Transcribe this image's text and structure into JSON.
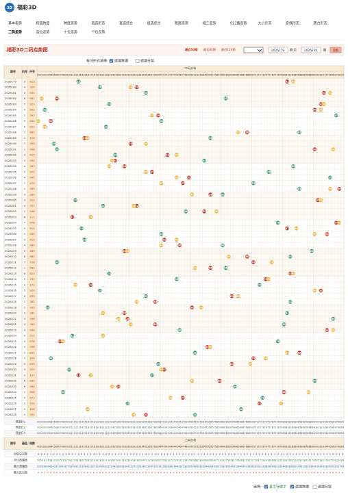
{
  "header": {
    "logo": "福彩3D",
    "nav": [
      "基本走势",
      "和值跨度",
      "跨度走势",
      "直选形态",
      "直选综合",
      "组选综合",
      "和尾走势",
      "组三走势",
      "012路走势",
      "大小形态",
      "奇偶形态",
      "质合形态"
    ],
    "nav2": [
      "二码走势",
      "百位走势",
      "十位走势",
      "个位走势"
    ]
  },
  "title_bar": {
    "title": "福彩3D二码走势图",
    "ranges": [
      "最近50期",
      "最近80期",
      "最近120期"
    ],
    "start": "2026179",
    "mid": "期 至",
    "end": "2026239",
    "suffix": "期",
    "button": "查看"
  },
  "options": {
    "label": "标注形式选择:",
    "items": [
      {
        "text": "遗漏数据",
        "checked": true
      },
      {
        "text": "遗漏分层",
        "checked": false
      }
    ]
  },
  "table": {
    "headers": [
      "期号",
      "机号",
      "开号"
    ],
    "group": "二码分布",
    "codes": [
      "00",
      "01",
      "02",
      "03",
      "04",
      "05",
      "06",
      "07",
      "08",
      "09",
      "10",
      "11",
      "12",
      "13",
      "14",
      "15",
      "16",
      "17",
      "18",
      "19",
      "20",
      "21",
      "22",
      "23",
      "24",
      "25",
      "26",
      "27",
      "28",
      "29",
      "30",
      "31",
      "32",
      "33",
      "34",
      "35",
      "36",
      "37",
      "38",
      "39",
      "40",
      "41",
      "42",
      "43",
      "44",
      "45",
      "46",
      "47",
      "48",
      "49",
      "50",
      "51",
      "52",
      "53",
      "54",
      "55",
      "56",
      "57",
      "58",
      "59",
      "60",
      "61",
      "62",
      "63",
      "64",
      "65",
      "66",
      "67",
      "68",
      "69",
      "70",
      "71",
      "72",
      "73",
      "74",
      "75",
      "76",
      "77",
      "78",
      "79",
      "80",
      "81",
      "82",
      "83",
      "84",
      "85",
      "86",
      "87",
      "88",
      "89",
      "90",
      "91",
      "92",
      "93",
      "94",
      "95",
      "96",
      "97",
      "98",
      "99"
    ],
    "hit_colors": [
      "#c0392b",
      "#3a9a7a",
      "#f0b030"
    ],
    "rows": [
      {
        "issue": "2026179",
        "test": "3",
        "number": "813",
        "hits": [
          81,
          13,
          83
        ]
      },
      {
        "issue": "2026180",
        "test": "4",
        "number": "320",
        "hits": [
          32,
          20,
          30
        ]
      },
      {
        "issue": "2026181",
        "test": "3",
        "number": "935",
        "hits": [
          93,
          35,
          95
        ]
      },
      {
        "issue": "2026182",
        "test": "6",
        "number": "061",
        "hits": [
          6,
          61,
          1
        ]
      },
      {
        "issue": "2026183",
        "test": "7",
        "number": "923",
        "hits": [
          92,
          23,
          93
        ]
      },
      {
        "issue": "2026184",
        "test": "3",
        "number": "902",
        "hits": [
          90,
          2,
          92
        ]
      },
      {
        "issue": "2026185",
        "test": "1",
        "number": "397",
        "hits": [
          39,
          97,
          37
        ]
      },
      {
        "issue": "2026186",
        "test": "5",
        "number": "040",
        "hits": [
          4,
          40,
          0
        ]
      },
      {
        "issue": "2026187",
        "test": "4",
        "number": "022",
        "hits": [
          2,
          22,
          2
        ]
      },
      {
        "issue": "2026188",
        "test": "2",
        "number": "685",
        "hits": [
          68,
          85,
          65
        ]
      },
      {
        "issue": "2026189",
        "test": "1",
        "number": "156",
        "hits": [
          15,
          56,
          16
        ]
      },
      {
        "issue": "2026190",
        "test": "7",
        "number": "305",
        "hits": [
          30,
          5,
          35
        ]
      },
      {
        "issue": "2026191",
        "test": "1",
        "number": "906",
        "hits": [
          90,
          6,
          96
        ]
      },
      {
        "issue": "2026192",
        "test": "3",
        "number": "425",
        "hits": [
          42,
          25,
          45
        ]
      },
      {
        "issue": "2026193",
        "test": "3",
        "number": "254",
        "hits": [
          25,
          54,
          24
        ]
      },
      {
        "issue": "2026194",
        "test": "4",
        "number": "283",
        "hits": [
          28,
          83,
          23
        ]
      },
      {
        "issue": "2026195",
        "test": "5",
        "number": "375",
        "hits": [
          37,
          75,
          35
        ]
      },
      {
        "issue": "2026196",
        "test": "4",
        "number": "495",
        "hits": [
          49,
          95,
          45
        ]
      },
      {
        "issue": "2026197",
        "test": "7",
        "number": "470",
        "hits": [
          47,
          70,
          40
        ]
      },
      {
        "issue": "2026198",
        "test": "1",
        "number": "985",
        "hits": [
          98,
          85,
          95
        ]
      },
      {
        "issue": "2026199",
        "test": "3",
        "number": "560",
        "hits": [
          56,
          60,
          50
        ]
      },
      {
        "issue": "2026200",
        "test": "3",
        "number": "912",
        "hits": [
          91,
          12,
          92
        ]
      },
      {
        "issue": "2026201",
        "test": "4",
        "number": "321",
        "hits": [
          32,
          21,
          31
        ]
      },
      {
        "issue": "2026202",
        "test": "1",
        "number": "548",
        "hits": [
          54,
          48,
          58
        ]
      },
      {
        "issue": "2026203",
        "test": "6",
        "number": "117",
        "hits": [
          11,
          17,
          17
        ]
      },
      {
        "issue": "2026204",
        "test": "7",
        "number": "978",
        "hits": [
          97,
          78,
          98
        ]
      },
      {
        "issue": "2026205",
        "test": "5",
        "number": "814",
        "hits": [
          81,
          14,
          84
        ]
      },
      {
        "issue": "2026206",
        "test": "2",
        "number": "940",
        "hits": [
          94,
          40,
          90
        ]
      },
      {
        "issue": "2026207",
        "test": "3",
        "number": "415",
        "hits": [
          41,
          15,
          45
        ]
      },
      {
        "issue": "2026208",
        "test": "4",
        "number": "460",
        "hits": [
          46,
          60,
          40
        ]
      },
      {
        "issue": "2026209",
        "test": "5",
        "number": "289",
        "hits": [
          28,
          89,
          29
        ]
      },
      {
        "issue": "2026210",
        "test": "8",
        "number": "682",
        "hits": [
          68,
          82,
          62
        ]
      },
      {
        "issue": "2026211",
        "test": "7",
        "number": "706",
        "hits": [
          70,
          6,
          76
        ]
      },
      {
        "issue": "2026212",
        "test": "1",
        "number": "561",
        "hits": [
          56,
          61,
          51
        ]
      },
      {
        "issue": "2026213",
        "test": "6",
        "number": "823",
        "hits": [
          82,
          23,
          83
        ]
      },
      {
        "issue": "2026214",
        "test": "5",
        "number": "745",
        "hits": [
          74,
          45,
          75
        ]
      },
      {
        "issue": "2026215",
        "test": "4",
        "number": "172",
        "hits": [
          17,
          72,
          12
        ]
      },
      {
        "issue": "2026216",
        "test": "5",
        "number": "920",
        "hits": [
          92,
          20,
          90
        ]
      },
      {
        "issue": "2026217",
        "test": "6",
        "number": "635",
        "hits": [
          63,
          35,
          65
        ]
      },
      {
        "issue": "2026218",
        "test": "2",
        "number": "382",
        "hits": [
          38,
          82,
          32
        ]
      },
      {
        "issue": "2026219",
        "test": "1",
        "number": "503",
        "hits": [
          50,
          3,
          53
        ]
      },
      {
        "issue": "2026220",
        "test": "3",
        "number": "281",
        "hits": [
          28,
          81,
          21
        ]
      },
      {
        "issue": "2026221",
        "test": "3",
        "number": "296",
        "hits": [
          29,
          96,
          26
        ]
      },
      {
        "issue": "2026222",
        "test": "4",
        "number": "380",
        "hits": [
          38,
          80,
          30
        ]
      },
      {
        "issue": "2026223",
        "test": "3",
        "number": "946",
        "hits": [
          94,
          46,
          96
        ]
      },
      {
        "issue": "2026224",
        "test": "9",
        "number": "211",
        "hits": [
          21,
          11,
          21
        ]
      },
      {
        "issue": "2026225",
        "test": "3",
        "number": "078",
        "hits": [
          7,
          78,
          8
        ]
      },
      {
        "issue": "2026226",
        "test": "3",
        "number": "556",
        "hits": [
          55,
          56,
          56
        ]
      },
      {
        "issue": "2026227",
        "test": "2",
        "number": "851",
        "hits": [
          85,
          51,
          81
        ]
      },
      {
        "issue": "2026228",
        "test": "3",
        "number": "704",
        "hits": [
          70,
          4,
          74
        ]
      },
      {
        "issue": "2026229",
        "test": "0",
        "number": "639",
        "hits": [
          63,
          39,
          69
        ]
      },
      {
        "issue": "2026230",
        "test": "3",
        "number": "410",
        "hits": [
          41,
          10,
          40
        ]
      },
      {
        "issue": "2026231",
        "test": "2",
        "number": "137",
        "hits": [
          13,
          37,
          17
        ]
      },
      {
        "issue": "2026232",
        "test": "8",
        "number": "590",
        "hits": [
          59,
          90,
          50
        ]
      },
      {
        "issue": "2026233",
        "test": "6",
        "number": "264",
        "hits": [
          26,
          64,
          24
        ]
      },
      {
        "issue": "2026234",
        "test": "1",
        "number": "808",
        "hits": [
          80,
          8,
          88
        ]
      },
      {
        "issue": "2026235",
        "test": "5",
        "number": "473",
        "hits": [
          47,
          73,
          43
        ]
      },
      {
        "issue": "2026236",
        "test": "2",
        "number": "729",
        "hits": [
          72,
          29,
          79
        ]
      },
      {
        "issue": "2026237",
        "test": "5",
        "number": "166",
        "hits": [
          16,
          66,
          16
        ]
      },
      {
        "issue": "2026238",
        "test": "0",
        "number": "351",
        "hits": [
          35,
          51,
          31
        ]
      }
    ]
  },
  "presel": {
    "labels": [
      "预选行1",
      "预选行2",
      "预选行3"
    ]
  },
  "stats": {
    "headers": [
      "期号",
      "最值",
      "尾数"
    ],
    "group": "二码分布",
    "rows": [
      {
        "label": "出现总次数",
        "values": [
          0,
          0,
          4,
          2,
          1,
          2,
          2,
          1,
          2,
          2,
          0,
          3,
          1,
          3,
          4,
          1,
          1,
          3,
          3,
          3,
          2,
          3,
          4,
          3,
          2,
          1,
          1,
          2,
          2,
          1,
          3,
          2,
          2,
          1,
          1,
          3,
          2,
          1,
          1,
          2,
          1,
          0,
          3,
          1,
          1,
          1,
          2,
          3,
          1,
          2,
          0,
          1,
          1,
          2,
          2,
          1,
          2,
          1,
          1,
          3,
          2,
          1,
          0,
          1,
          2,
          2,
          1,
          3,
          2,
          1,
          1,
          2,
          2,
          2,
          1,
          2,
          1,
          1,
          3,
          1,
          1,
          2,
          2,
          1,
          2,
          1,
          1,
          1,
          2,
          2,
          1,
          1,
          2,
          1,
          2,
          1,
          0,
          3,
          1,
          1
        ]
      },
      {
        "label": "平均遗漏值",
        "values": [
          50,
          50,
          9,
          16,
          18,
          10,
          19,
          25,
          16,
          17,
          50,
          12,
          29,
          13,
          10,
          25,
          26,
          12,
          13,
          11,
          18,
          12,
          9,
          14,
          20,
          27,
          24,
          17,
          16,
          25,
          14,
          19,
          18,
          29,
          24,
          12,
          17,
          28,
          26,
          20,
          25,
          50,
          13,
          27,
          25,
          26,
          17,
          12,
          24,
          19,
          50,
          26,
          25,
          19,
          18,
          28,
          16,
          24,
          27,
          13,
          18,
          27,
          50,
          28,
          17,
          16,
          26,
          12,
          19,
          25,
          27,
          18,
          17,
          19,
          24,
          16,
          26,
          28,
          12,
          25,
          29,
          17,
          16,
          25,
          18,
          29,
          27,
          26,
          16,
          17,
          26,
          25,
          18,
          27,
          16,
          27,
          50,
          12,
          24,
          28
        ]
      },
      {
        "label": "最大遗漏值",
        "values": [
          50,
          50,
          36,
          34,
          42,
          43,
          37,
          30,
          43,
          37,
          50,
          24,
          29,
          21,
          15,
          36,
          41,
          23,
          27,
          22,
          34,
          29,
          21,
          25,
          37,
          42,
          38,
          30,
          28,
          41,
          23,
          27,
          37,
          24,
          34,
          21,
          30,
          45,
          39,
          31,
          41,
          50,
          26,
          38,
          37,
          44,
          33,
          25,
          36,
          30,
          50,
          40,
          39,
          32,
          36,
          44,
          30,
          40,
          39,
          27,
          32,
          41,
          50,
          43,
          31,
          28,
          40,
          24,
          33,
          38,
          42,
          30,
          31,
          33,
          38,
          29,
          40,
          43,
          23,
          39,
          44,
          30,
          28,
          38,
          31,
          45,
          42,
          39,
          29,
          30,
          41,
          39,
          32,
          42,
          30,
          40,
          50,
          25,
          37,
          43
        ]
      },
      {
        "label": "最大连出值",
        "values": [
          0,
          0,
          1,
          0,
          0,
          0,
          0,
          0,
          0,
          0,
          0,
          0,
          0,
          0,
          1,
          0,
          0,
          0,
          0,
          0,
          0,
          0,
          0,
          0,
          0,
          0,
          0,
          0,
          0,
          0,
          0,
          0,
          0,
          0,
          0,
          0,
          0,
          0,
          0,
          0,
          0,
          0,
          0,
          0,
          0,
          0,
          0,
          0,
          0,
          0,
          0,
          0,
          0,
          0,
          0,
          0,
          0,
          0,
          0,
          0,
          0,
          0,
          0,
          0,
          0,
          0,
          0,
          0,
          0,
          0,
          0,
          0,
          0,
          0,
          0,
          0,
          0,
          0,
          0,
          0,
          0,
          0,
          0,
          0,
          0,
          0,
          0,
          0,
          0,
          0,
          0,
          0,
          0,
          0,
          0,
          0,
          0,
          0,
          0,
          0
        ]
      }
    ]
  },
  "footer": {
    "label": "选择:",
    "items": [
      {
        "text": "显示行提示",
        "checked": true
      },
      {
        "text": "遗漏数据",
        "checked": true
      },
      {
        "text": "遗漏分层",
        "checked": false
      }
    ]
  }
}
